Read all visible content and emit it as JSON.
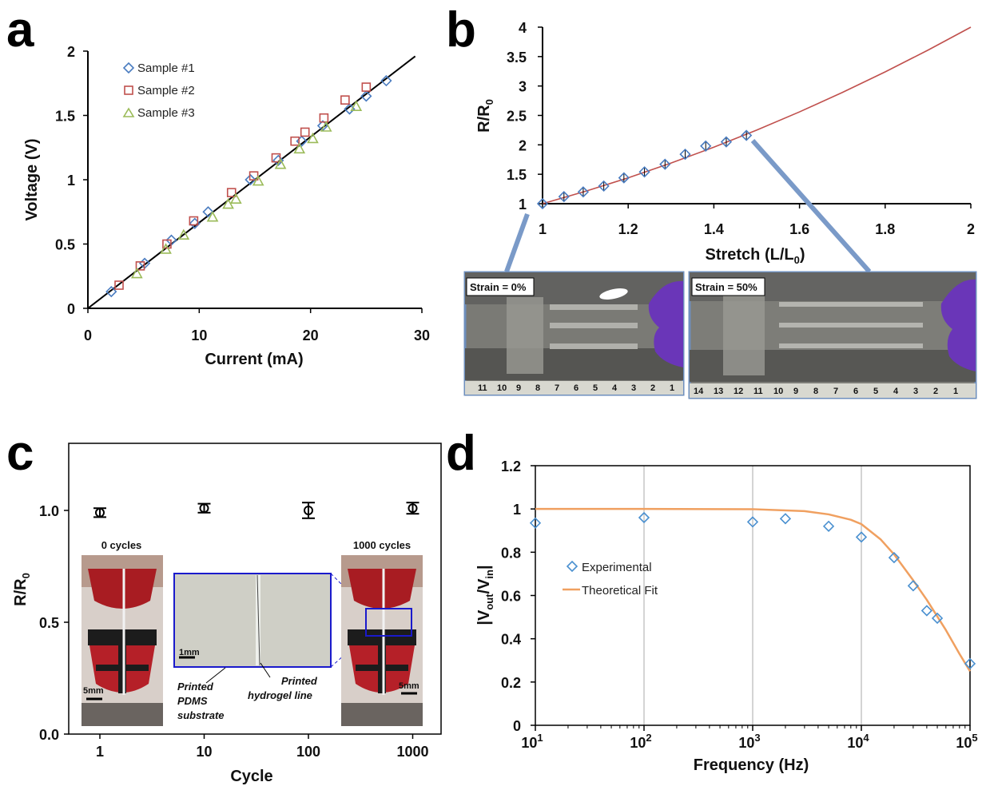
{
  "panels": {
    "a": {
      "letter": "a"
    },
    "b": {
      "letter": "b"
    },
    "c": {
      "letter": "c"
    },
    "d": {
      "letter": "d"
    }
  },
  "colors": {
    "sample1": "#4a7cc0",
    "sample2": "#c0504d",
    "sample3": "#9bbb59",
    "fitB": "#c0504d",
    "fitD": "#f0a060",
    "expD": "#4a90d0",
    "photoFrame": "#6e8fbd",
    "insetFrame": "#1a1acc"
  },
  "chart_data": [
    {
      "type": "scatter",
      "panel": "a",
      "xlabel": "Current (mA)",
      "ylabel": "Voltage (V)",
      "xlim": [
        0,
        30
      ],
      "ylim": [
        0,
        2
      ],
      "xticks": [
        0,
        10,
        20,
        30
      ],
      "yticks": [
        0,
        0.5,
        1,
        1.5,
        2
      ],
      "fit_line": {
        "x": [
          0,
          29.4
        ],
        "y": [
          0,
          1.96
        ]
      },
      "series": [
        {
          "name": "Sample #1",
          "marker": "diamond",
          "x": [
            2.1,
            5.1,
            7.5,
            9.6,
            10.8,
            14.6,
            17.1,
            19.2,
            21.1,
            23.5,
            25.0,
            26.8
          ],
          "y": [
            0.13,
            0.35,
            0.53,
            0.66,
            0.75,
            1.0,
            1.15,
            1.3,
            1.42,
            1.55,
            1.65,
            1.77
          ]
        },
        {
          "name": "Sample #2",
          "marker": "square",
          "x": [
            2.8,
            4.7,
            7.1,
            9.5,
            12.9,
            14.9,
            16.9,
            18.6,
            19.5,
            21.2,
            23.1,
            25.0
          ],
          "y": [
            0.18,
            0.33,
            0.5,
            0.68,
            0.9,
            1.03,
            1.17,
            1.3,
            1.37,
            1.48,
            1.62,
            1.72
          ]
        },
        {
          "name": "Sample #3",
          "marker": "triangle",
          "x": [
            4.4,
            7.0,
            8.6,
            11.2,
            12.6,
            13.3,
            15.3,
            17.3,
            19.0,
            20.2,
            21.4,
            24.1
          ],
          "y": [
            0.27,
            0.46,
            0.57,
            0.71,
            0.81,
            0.85,
            0.99,
            1.12,
            1.24,
            1.32,
            1.41,
            1.57
          ]
        }
      ]
    },
    {
      "type": "scatter",
      "panel": "b",
      "xlabel": "Stretch (L/L",
      "xlabel_sub": "0",
      "xlabel_end": ")",
      "ylabel": "R/R",
      "ylabel_sub": "0",
      "xlim": [
        1,
        2
      ],
      "ylim": [
        1,
        4
      ],
      "xticks": [
        1,
        1.2,
        1.4,
        1.6,
        1.8,
        2
      ],
      "yticks": [
        1,
        1.5,
        2,
        2.5,
        3,
        3.5,
        4
      ],
      "fit": {
        "x": [
          1,
          1.1,
          1.2,
          1.3,
          1.4,
          1.5,
          1.6,
          1.7,
          1.8,
          1.9,
          2.0
        ],
        "y": [
          1,
          1.21,
          1.44,
          1.69,
          1.96,
          2.25,
          2.56,
          2.89,
          3.24,
          3.61,
          4.0
        ]
      },
      "points": {
        "x": [
          1.0,
          1.05,
          1.095,
          1.143,
          1.19,
          1.238,
          1.286,
          1.333,
          1.381,
          1.429,
          1.476
        ],
        "y": [
          1.0,
          1.12,
          1.2,
          1.3,
          1.44,
          1.54,
          1.67,
          1.84,
          1.98,
          2.05,
          2.16
        ]
      },
      "photos": [
        {
          "label": "Strain = 0%"
        },
        {
          "label": "Strain = 50%"
        }
      ],
      "ruler_left": [
        "11",
        "10",
        "9",
        "8",
        "7",
        "6",
        "5",
        "4",
        "3",
        "2",
        "1"
      ],
      "ruler_right": [
        "14",
        "13",
        "12",
        "11",
        "10",
        "9",
        "8",
        "7",
        "6",
        "5",
        "4",
        "3",
        "2",
        "1"
      ]
    },
    {
      "type": "scatter",
      "panel": "c",
      "xlabel": "Cycle",
      "ylabel": "R/R",
      "ylabel_sub": "0",
      "ylim": [
        0,
        1.3
      ],
      "yticks": [
        "0.0",
        "0.5",
        "1.0"
      ],
      "xticks": [
        "1",
        "10",
        "100",
        "1000"
      ],
      "x": [
        1,
        10,
        100,
        1000
      ],
      "y": [
        0.99,
        1.01,
        1.0,
        1.01
      ],
      "err": [
        0.02,
        0.02,
        0.035,
        0.025
      ],
      "captions": {
        "left": "0 cycles",
        "right": "1000 cycles"
      },
      "scales": {
        "left": "5mm",
        "inset": "1mm",
        "right": "5mm"
      },
      "notes": {
        "substrate": [
          "Printed",
          "PDMS",
          "substrate"
        ],
        "line": [
          "Printed",
          "hydrogel line"
        ]
      }
    },
    {
      "type": "line",
      "panel": "d",
      "xlabel": "Frequency (Hz)",
      "ylabel": "|V",
      "ylabel_sub1": "out",
      "ylabel_mid": "/V",
      "ylabel_sub2": "in",
      "ylabel_end": "|",
      "xscale": "log",
      "xlim": [
        10,
        100000
      ],
      "ylim": [
        0,
        1.2
      ],
      "xticks": [
        10,
        100,
        1000,
        10000,
        100000
      ],
      "xtick_base": "10",
      "xtick_exps": [
        "1",
        "2",
        "3",
        "4",
        "5"
      ],
      "yticks": [
        "0",
        "0.2",
        "0.4",
        "0.6",
        "0.8",
        "1",
        "1.2"
      ],
      "grid_x": true,
      "legend": {
        "exp": "Experimental",
        "fit": "Theoretical Fit"
      },
      "experimental": {
        "x": [
          10,
          100,
          1000,
          2000,
          5000,
          10000,
          20000,
          30000,
          40000,
          50000,
          100000
        ],
        "y": [
          0.935,
          0.96,
          0.94,
          0.955,
          0.92,
          0.87,
          0.775,
          0.645,
          0.53,
          0.495,
          0.285
        ]
      },
      "fit": {
        "x": [
          10,
          100,
          1000,
          3000,
          5000,
          8000,
          10000,
          15000,
          20000,
          30000,
          40000,
          60000,
          80000,
          100000
        ],
        "y": [
          1.0,
          1.0,
          0.999,
          0.99,
          0.975,
          0.95,
          0.93,
          0.86,
          0.79,
          0.67,
          0.58,
          0.44,
          0.33,
          0.25
        ]
      }
    }
  ]
}
